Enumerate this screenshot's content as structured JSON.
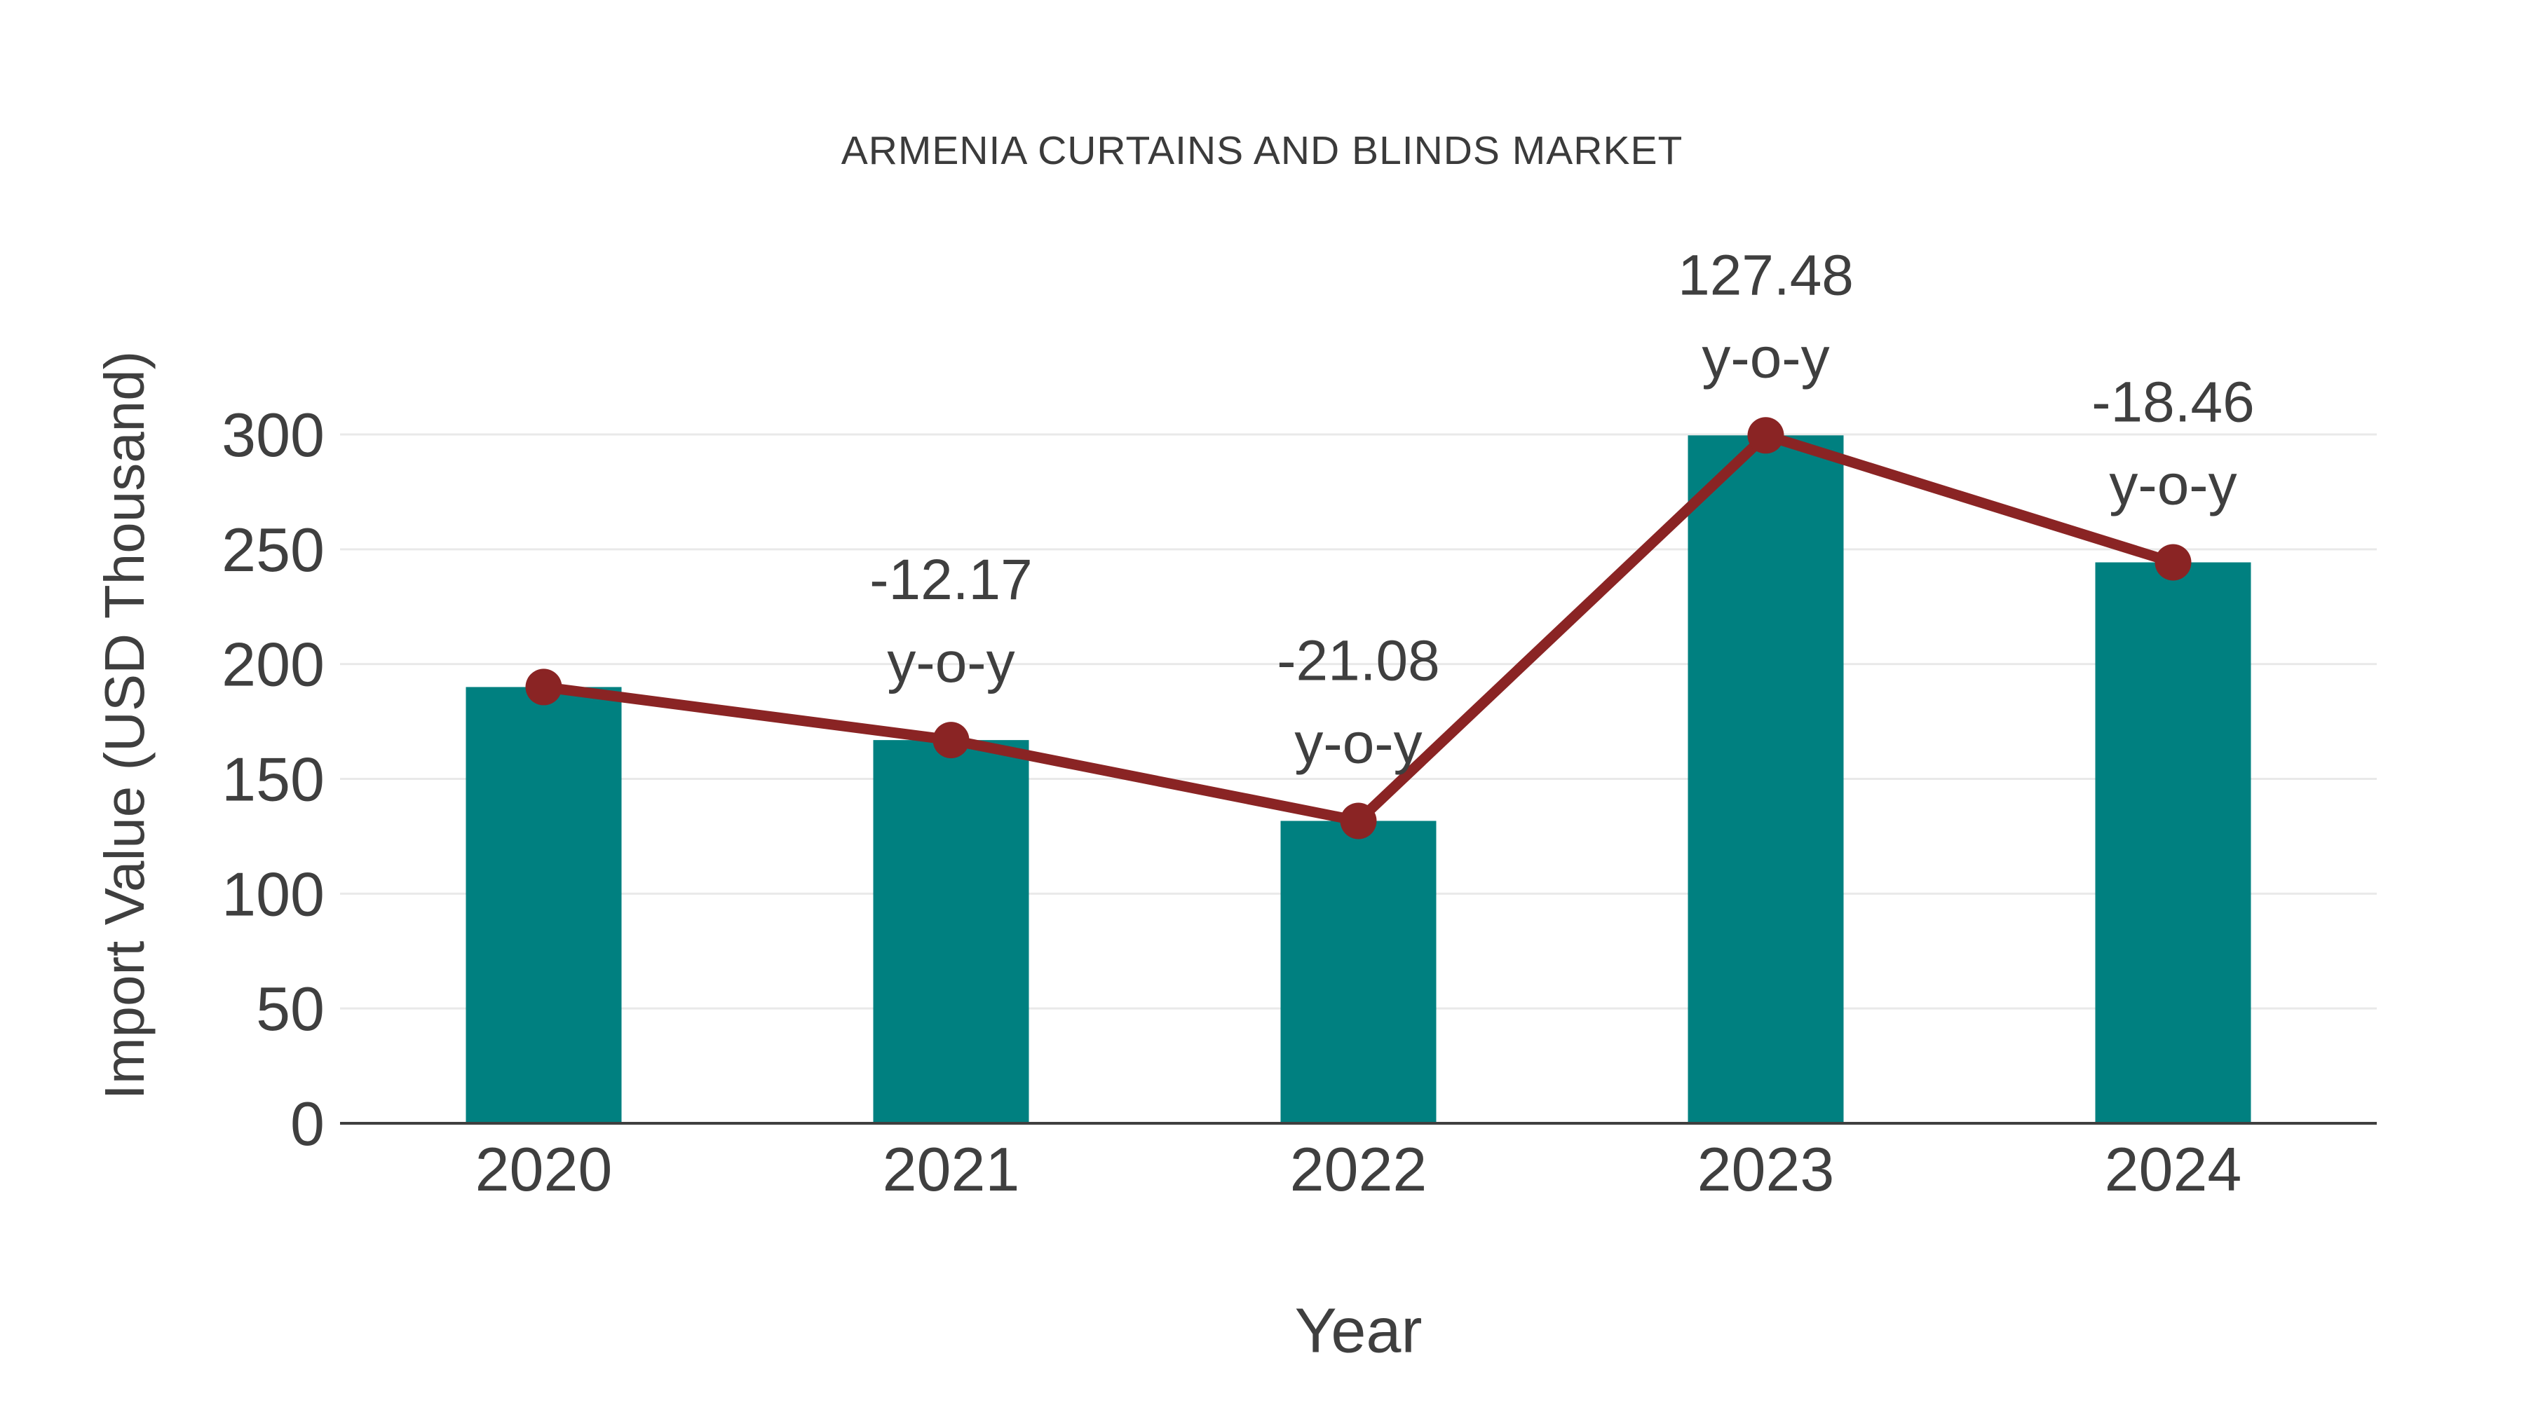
{
  "chart_data": {
    "type": "bar+line",
    "title": "ARMENIA CURTAINS AND BLINDS MARKET",
    "xlabel": "Year",
    "ylabel": "Import Value (USD Thousand)",
    "categories": [
      "2020",
      "2021",
      "2022",
      "2023",
      "2024"
    ],
    "series": [
      {
        "name": "Import Value (USD Thousand)",
        "type": "bar",
        "color": "#008080",
        "values": [
          190,
          166.9,
          131.7,
          299.6,
          244.3
        ]
      },
      {
        "name": "Year-over-year change",
        "type": "line",
        "color": "#8a2424",
        "values": [
          190,
          166.9,
          131.7,
          299.6,
          244.3
        ],
        "yoy_percent": [
          null,
          -12.17,
          -21.08,
          127.48,
          -18.46
        ]
      }
    ],
    "annotations": [
      {
        "category": "2021",
        "value_label": "-12.17",
        "suffix_label": "y-o-y"
      },
      {
        "category": "2022",
        "value_label": "-21.08",
        "suffix_label": "y-o-y"
      },
      {
        "category": "2023",
        "value_label": "127.48",
        "suffix_label": "y-o-y"
      },
      {
        "category": "2024",
        "value_label": "-18.46",
        "suffix_label": "y-o-y"
      }
    ],
    "ylim": [
      0,
      300
    ],
    "yticks": [
      0,
      50,
      100,
      150,
      200,
      250,
      300
    ],
    "grid": true,
    "legend": false,
    "colors": {
      "bar": "#008080",
      "line": "#8a2424",
      "grid": "#e9e9e9",
      "axis": "#3f3f3f",
      "text": "#3f3f3f",
      "title": "#3b3b3b",
      "background": "#ffffff"
    }
  }
}
